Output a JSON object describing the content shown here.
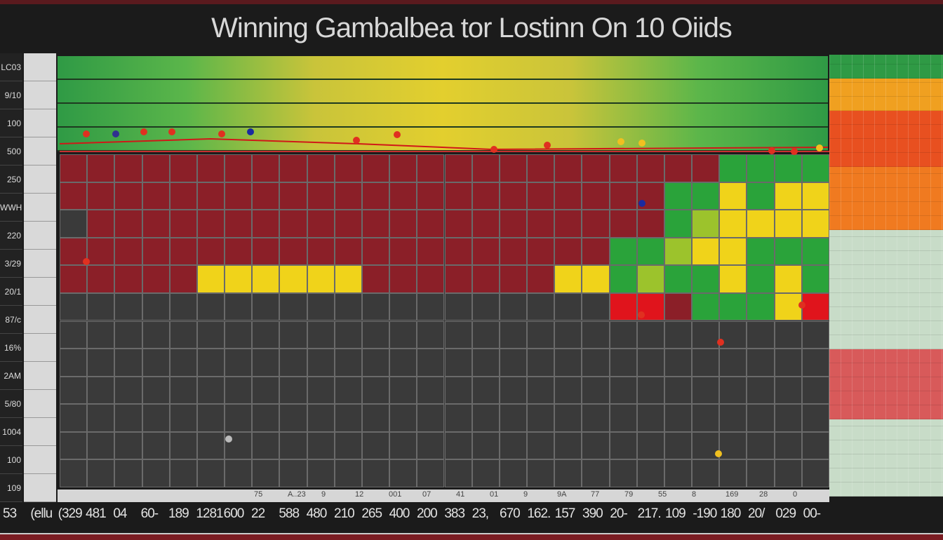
{
  "chart_data": {
    "type": "heatmap",
    "title": "Winning Gambalbea tor Lostinn On 10 Oiids",
    "y_tick_labels": [
      "LC03",
      "9/10",
      "100",
      "500",
      "250",
      "WWH",
      "220",
      "3/29",
      "20/1",
      "87/c",
      "16%",
      "2AM",
      "5/80",
      "1004",
      "100",
      "109"
    ],
    "x_tick_labels": [
      "53",
      "(ellu",
      "(329",
      "481",
      "04",
      "60-",
      "189",
      "1281",
      "600",
      "22",
      "588",
      "480",
      "210",
      "265",
      "400",
      "200",
      "383",
      "23,",
      "670",
      "162.",
      "157",
      "390",
      "20-",
      "217.",
      "109",
      "-190",
      "180",
      "20/",
      "029",
      "00-"
    ],
    "x_sub_labels": [
      "75",
      "A..23",
      "9",
      "12",
      "001",
      "07",
      "41",
      "01",
      "9",
      "9A",
      "77",
      "79",
      "55",
      "8",
      "169",
      "28",
      "0"
    ],
    "color_key": {
      "r": "#8b1f28",
      "d": "#3a3a3a",
      "y": "#f0d31a",
      "g": "#2aa33a",
      "l": "#9cc32c",
      "R": "#e0141c"
    },
    "matrix": [
      "rrrrrrrrrrrrrrrrrrrrrrrrgggg",
      "rrrrrrrrrrrrrrrrrrrrrrggygyy",
      "drrrrrrrrrrrrrrrrrrrrrglyyyy",
      "rrrrrrrrrrrrrrrrrrrrgglyyggg",
      "rrrrryyyyyyrrrrrrryyglggygyg",
      "ddddddddddddddddddddRRrgggyR",
      "dddddddddddddddddddddddddddd",
      "dddddddddddddddddddddddddddd",
      "dddddddddddddddddddddddddddd",
      "dddddddddddddddddddddddddddd",
      "dddddddddddddddddddddddddddd",
      "dddddddddddddddddddddddddddd"
    ],
    "band_colors": [
      "#2f9a45",
      "#5bb64a",
      "#c9c43a",
      "#e3cf2e",
      "#c9c43a",
      "#5bb64a",
      "#2f9a45"
    ],
    "legend_colors": [
      "#2f9a45",
      "#f0a020",
      "#e85020",
      "#d8262a",
      "#f07a20",
      "#c8dcc8",
      "#e8e8e8",
      "#d85a5a"
    ]
  }
}
